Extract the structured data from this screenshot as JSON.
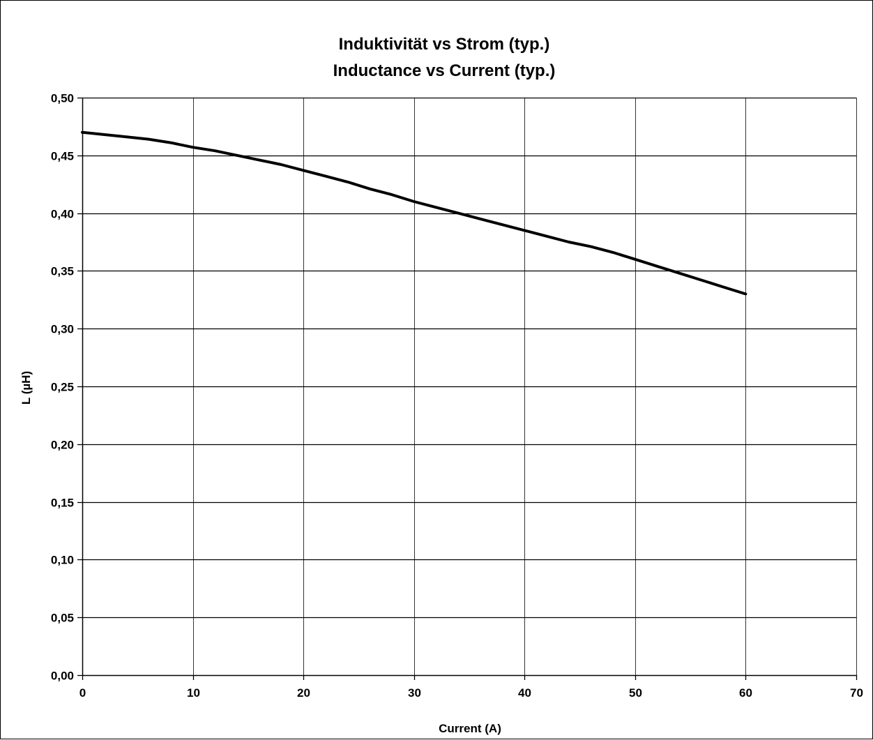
{
  "chart_data": {
    "type": "line",
    "title_lines": [
      "Induktivität vs Strom (typ.)",
      "Inductance vs Current (typ.)"
    ],
    "xlabel": "Current (A)",
    "ylabel": "L (µH)",
    "xlim": [
      0,
      70
    ],
    "ylim": [
      0,
      0.5
    ],
    "x_ticks": [
      0,
      10,
      20,
      30,
      40,
      50,
      60,
      70
    ],
    "x_tick_labels": [
      "0",
      "10",
      "20",
      "30",
      "40",
      "50",
      "60",
      "70"
    ],
    "y_ticks": [
      0,
      0.05,
      0.1,
      0.15,
      0.2,
      0.25,
      0.3,
      0.35,
      0.4,
      0.45,
      0.5
    ],
    "y_tick_labels": [
      "0,00",
      "0,05",
      "0,10",
      "0,15",
      "0,20",
      "0,25",
      "0,30",
      "0,35",
      "0,40",
      "0,45",
      "0,50"
    ],
    "grid": true,
    "legend": false,
    "series": [
      {
        "color": "#000000",
        "x": [
          0,
          2,
          4,
          6,
          8,
          10,
          12,
          14,
          16,
          18,
          20,
          22,
          24,
          26,
          28,
          30,
          32,
          34,
          36,
          38,
          40,
          42,
          44,
          46,
          48,
          50,
          52,
          54,
          56,
          58,
          60
        ],
        "y": [
          0.47,
          0.468,
          0.466,
          0.464,
          0.461,
          0.457,
          0.454,
          0.45,
          0.446,
          0.442,
          0.437,
          0.432,
          0.427,
          0.421,
          0.416,
          0.41,
          0.405,
          0.4,
          0.395,
          0.39,
          0.385,
          0.38,
          0.375,
          0.371,
          0.366,
          0.36,
          0.354,
          0.348,
          0.342,
          0.336,
          0.33
        ]
      }
    ]
  }
}
